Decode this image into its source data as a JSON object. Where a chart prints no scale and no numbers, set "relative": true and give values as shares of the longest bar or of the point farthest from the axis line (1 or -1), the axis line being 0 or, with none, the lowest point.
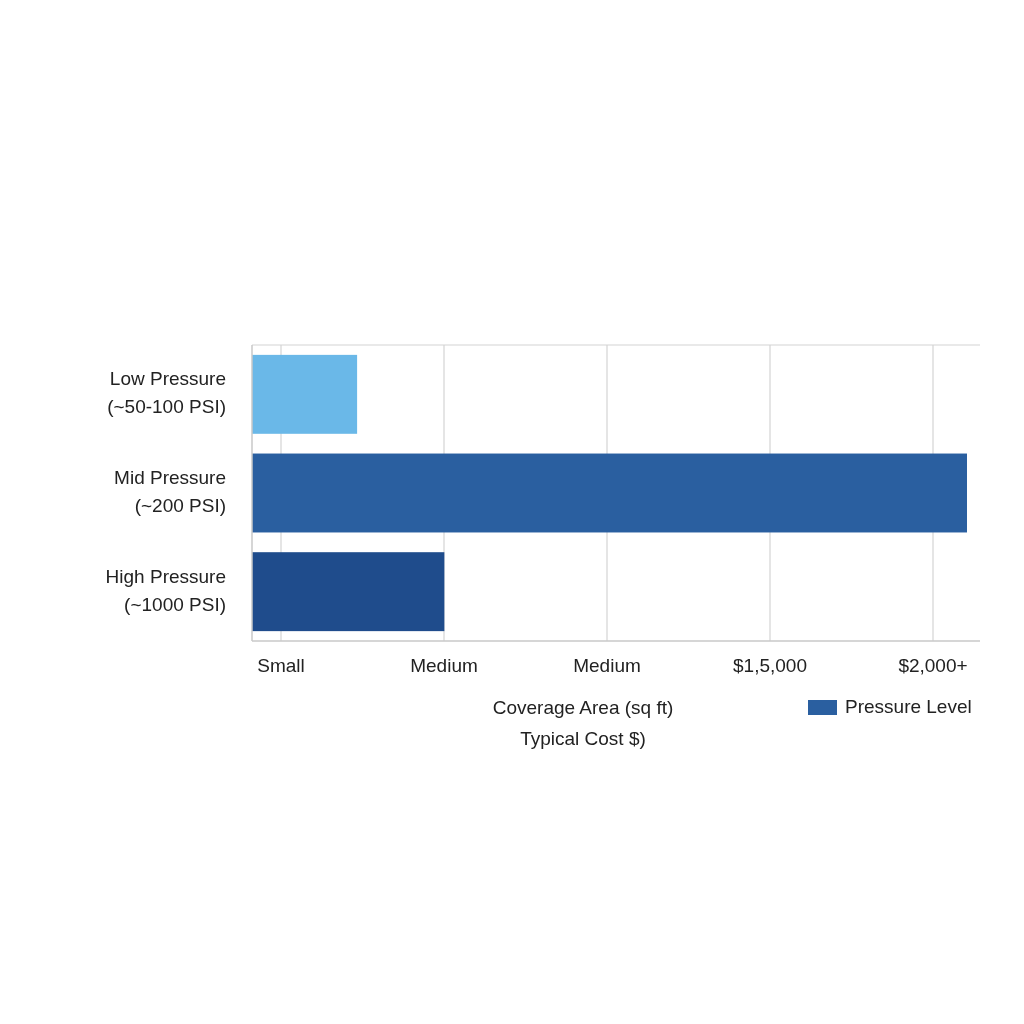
{
  "chart_data": {
    "type": "bar",
    "orientation": "horizontal",
    "relative": true,
    "categories": [
      "Low Pressure\n(~50-100 PSI)",
      "Mid Pressure\n(~200 PSI)",
      "High Pressure\n(~1000 PSI)"
    ],
    "series": [
      {
        "name": "Pressure Level",
        "color": "#2a5fa0",
        "colors": [
          "#6ab8e8",
          "#2a5fa0",
          "#1f4c8c"
        ],
        "values": [
          0.147,
          1,
          0.269
        ]
      }
    ],
    "annotations": [
      "Small",
      "Medium",
      "Medium",
      "$1,5,000",
      "$2,000+"
    ],
    "xlabel": "Coverage Area (sq ft)\nTypical Cost $)",
    "grid": true,
    "legend": "bottom right"
  }
}
